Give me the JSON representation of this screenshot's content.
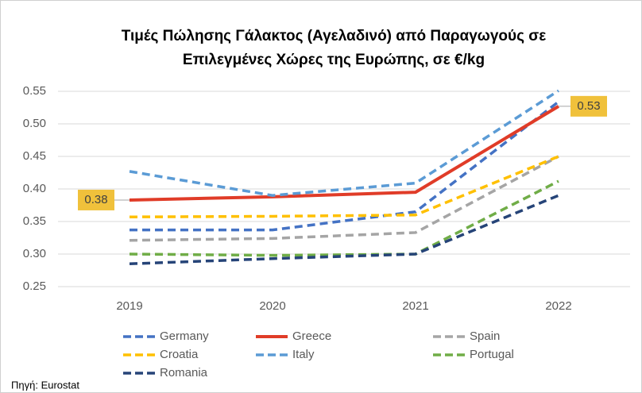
{
  "chart_data": {
    "type": "line",
    "title": [
      "Τιμές Πώλησης Γάλακτος (Αγελαδινό) από Παραγωγούς σε",
      "Επιλεγμένες Χώρες της Ευρώπης, σε €/kg"
    ],
    "categories": [
      "2019",
      "2020",
      "2021",
      "2022"
    ],
    "series": [
      {
        "name": "Germany",
        "color": "#4472c4",
        "style": "dashed",
        "values": [
          0.337,
          0.337,
          0.365,
          0.534
        ]
      },
      {
        "name": "Greece",
        "color": "#e03c28",
        "style": "solid",
        "values": [
          0.383,
          0.388,
          0.395,
          0.527
        ],
        "value_labels": [
          "0.38",
          null,
          null,
          "0.53"
        ]
      },
      {
        "name": "Spain",
        "color": "#a5a5a5",
        "style": "dashed",
        "values": [
          0.321,
          0.324,
          0.333,
          0.45
        ]
      },
      {
        "name": "Croatia",
        "color": "#ffc000",
        "style": "dashed",
        "values": [
          0.357,
          0.358,
          0.36,
          0.45
        ]
      },
      {
        "name": "Italy",
        "color": "#5b9bd5",
        "style": "dashed",
        "values": [
          0.427,
          0.39,
          0.409,
          0.551
        ]
      },
      {
        "name": "Portugal",
        "color": "#70ad47",
        "style": "dashed",
        "values": [
          0.3,
          0.298,
          0.3,
          0.412
        ]
      },
      {
        "name": "Romania",
        "color": "#264478",
        "style": "dashed",
        "values": [
          0.285,
          0.293,
          0.3,
          0.39
        ]
      }
    ],
    "ylim": [
      0.25,
      0.55
    ],
    "yticks": [
      0.25,
      {
        "value": 0.3,
        "label": "0.30"
      },
      0.35,
      {
        "value": 0.4,
        "label": "0.40"
      },
      0.45,
      {
        "value": 0.5,
        "label": "0.50"
      },
      0.55
    ],
    "grid": true,
    "legend": "bottom",
    "source": "Πηγή: Eurostat"
  }
}
